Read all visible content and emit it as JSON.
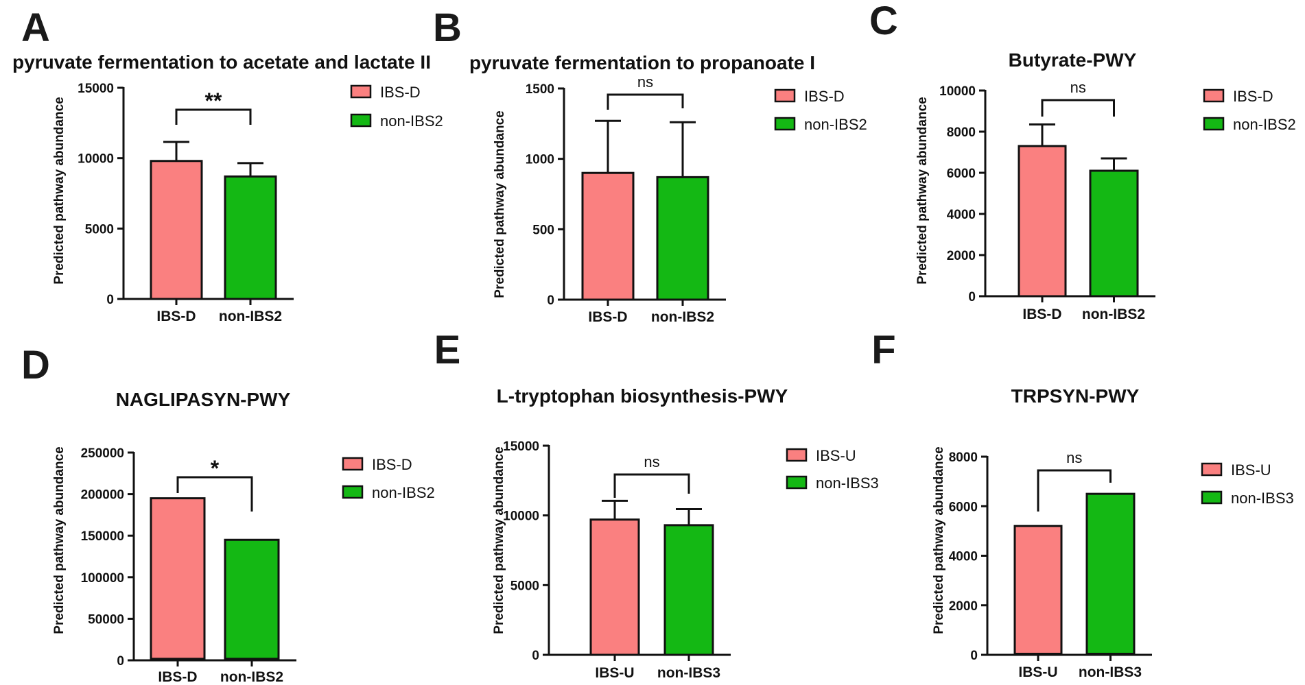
{
  "colors": {
    "group1": "#fa8080",
    "group2": "#14b814",
    "axis": "#111111",
    "letter": "#1a1a1a"
  },
  "chart_data": [
    {
      "panel": "A",
      "type": "bar",
      "title": "pyruvate fermentation to acetate and lactate II",
      "ylabel": "Predicted pathway abundance",
      "xlabel": "",
      "categories": [
        "IBS-D",
        "non-IBS2"
      ],
      "values": [
        9800,
        8700
      ],
      "errors": [
        1350,
        950
      ],
      "ylim": [
        0,
        15000
      ],
      "yticks": [
        0,
        5000,
        10000,
        15000
      ],
      "significance": "**",
      "legend": [
        "IBS-D",
        "non-IBS2"
      ],
      "legend_position": "right",
      "grid": false
    },
    {
      "panel": "B",
      "type": "bar",
      "title": "pyruvate fermentation to propanoate I",
      "ylabel": "Predicted pathway abundance",
      "xlabel": "",
      "categories": [
        "IBS-D",
        "non-IBS2"
      ],
      "values": [
        900,
        870
      ],
      "errors": [
        370,
        390
      ],
      "ylim": [
        0,
        1500
      ],
      "yticks": [
        0,
        500,
        1000,
        1500
      ],
      "significance": "ns",
      "legend": [
        "IBS-D",
        "non-IBS2"
      ],
      "legend_position": "right",
      "grid": false
    },
    {
      "panel": "C",
      "type": "bar",
      "title": "Butyrate-PWY",
      "ylabel": "Predicted pathway abundance",
      "xlabel": "",
      "categories": [
        "IBS-D",
        "non-IBS2"
      ],
      "values": [
        7300,
        6100
      ],
      "errors": [
        1050,
        600
      ],
      "ylim": [
        0,
        10000
      ],
      "yticks": [
        0,
        2000,
        4000,
        6000,
        8000,
        10000
      ],
      "significance": "ns",
      "legend": [
        "IBS-D",
        "non-IBS2"
      ],
      "legend_position": "right",
      "grid": false
    },
    {
      "panel": "D",
      "type": "bar",
      "title": "NAGLIPASYN-PWY",
      "ylabel": "Predicted pathway abundance",
      "xlabel": "",
      "categories": [
        "IBS-D",
        "non-IBS2"
      ],
      "values": [
        195000,
        145000
      ],
      "errors": [
        0,
        0
      ],
      "base_band": [
        3000,
        3000
      ],
      "ylim": [
        0,
        250000
      ],
      "yticks": [
        0,
        50000,
        100000,
        150000,
        200000,
        250000
      ],
      "significance": "*",
      "legend": [
        "IBS-D",
        "non-IBS2"
      ],
      "legend_position": "right",
      "grid": false
    },
    {
      "panel": "E",
      "type": "bar",
      "title": "L-tryptophan biosynthesis-PWY",
      "ylabel": "Predicted pathway abundance",
      "xlabel": "",
      "categories": [
        "IBS-U",
        "non-IBS3"
      ],
      "values": [
        9700,
        9300
      ],
      "errors": [
        1350,
        1150
      ],
      "ylim": [
        0,
        15000
      ],
      "yticks": [
        0,
        5000,
        10000,
        15000
      ],
      "significance": "ns",
      "legend": [
        "IBS-U",
        "non-IBS3"
      ],
      "legend_position": "right",
      "grid": false
    },
    {
      "panel": "F",
      "type": "bar",
      "title": "TRPSYN-PWY",
      "ylabel": "Predicted pathway abundance",
      "xlabel": "",
      "categories": [
        "IBS-U",
        "non-IBS3"
      ],
      "values": [
        5200,
        6500
      ],
      "errors": [
        0,
        0
      ],
      "base_band": [
        40,
        40
      ],
      "ylim": [
        0,
        8000
      ],
      "yticks": [
        0,
        2000,
        4000,
        6000,
        8000
      ],
      "significance": "ns",
      "legend": [
        "IBS-U",
        "non-IBS3"
      ],
      "legend_position": "right",
      "grid": false
    }
  ]
}
